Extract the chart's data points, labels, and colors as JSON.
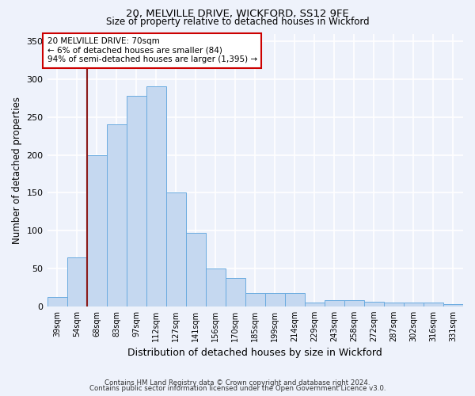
{
  "title1": "20, MELVILLE DRIVE, WICKFORD, SS12 9FE",
  "title2": "Size of property relative to detached houses in Wickford",
  "xlabel": "Distribution of detached houses by size in Wickford",
  "ylabel": "Number of detached properties",
  "categories": [
    "39sqm",
    "54sqm",
    "68sqm",
    "83sqm",
    "97sqm",
    "112sqm",
    "127sqm",
    "141sqm",
    "156sqm",
    "170sqm",
    "185sqm",
    "199sqm",
    "214sqm",
    "229sqm",
    "243sqm",
    "258sqm",
    "272sqm",
    "287sqm",
    "302sqm",
    "316sqm",
    "331sqm"
  ],
  "values": [
    12,
    65,
    200,
    240,
    278,
    290,
    150,
    97,
    50,
    37,
    18,
    18,
    18,
    5,
    8,
    8,
    6,
    5,
    5,
    5,
    3
  ],
  "bar_color": "#c5d8f0",
  "bar_edge_color": "#6aabe0",
  "annotation_text": "20 MELVILLE DRIVE: 70sqm\n← 6% of detached houses are smaller (84)\n94% of semi-detached houses are larger (1,395) →",
  "vline_index": 2,
  "ylim": [
    0,
    360
  ],
  "yticks": [
    0,
    50,
    100,
    150,
    200,
    250,
    300,
    350
  ],
  "footer1": "Contains HM Land Registry data © Crown copyright and database right 2024.",
  "footer2": "Contains public sector information licensed under the Open Government Licence v3.0.",
  "bg_color": "#eef2fb",
  "grid_color": "#ffffff"
}
